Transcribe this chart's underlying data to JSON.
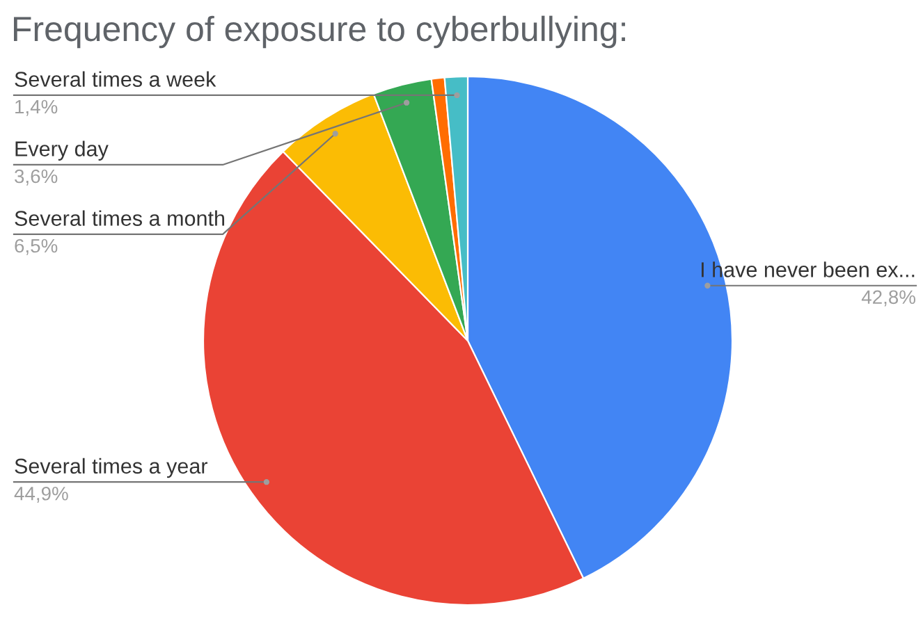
{
  "chart_data": {
    "type": "pie",
    "title": "Frequency of exposure to cyberbullying:",
    "categories": [
      "I have never been ex...",
      "Several times a year",
      "Several times a month",
      "Every day",
      null,
      "Several times a week"
    ],
    "values": [
      42.8,
      44.9,
      6.5,
      3.6,
      0.8,
      1.4
    ],
    "value_labels": [
      "42,8%",
      "44,9%",
      "6,5%",
      "3,6%",
      null,
      "1,4%"
    ],
    "colors": [
      "#4285f4",
      "#ea4335",
      "#fbbc04",
      "#34a853",
      "#ff6d01",
      "#46bdc6"
    ],
    "legend": false
  }
}
